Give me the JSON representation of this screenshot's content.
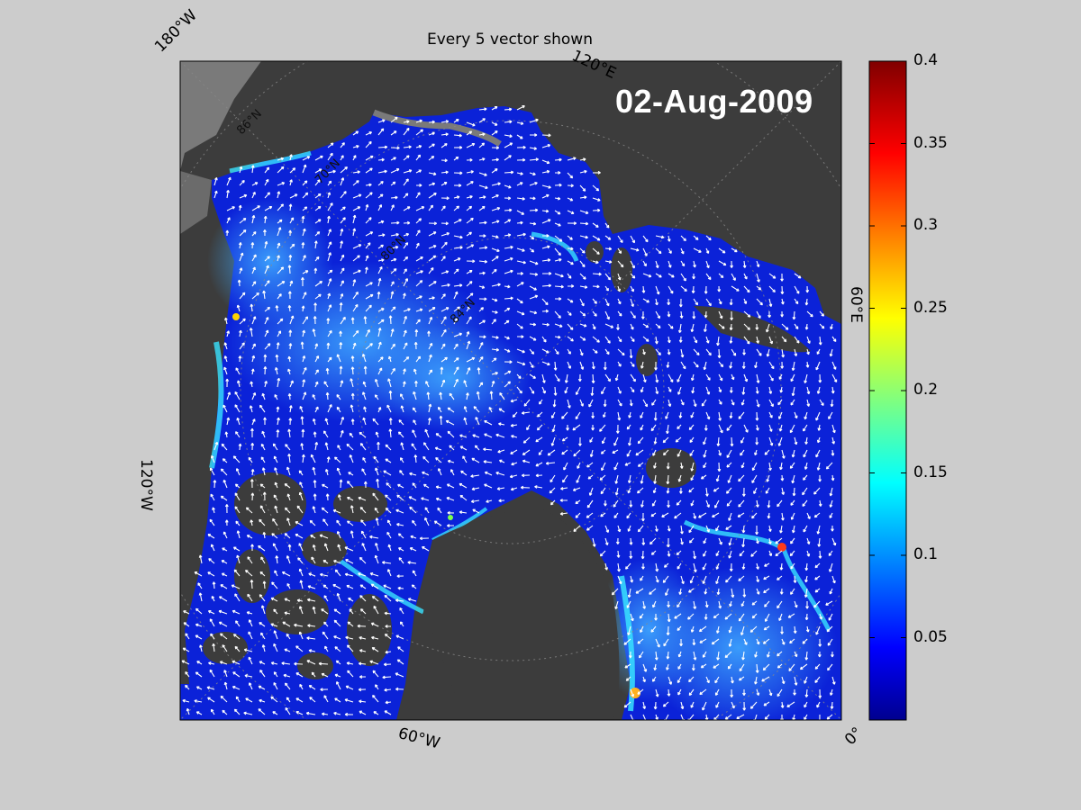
{
  "figure": {
    "title": "Every 5 vector shown",
    "date": "02-Aug-2009"
  },
  "map": {
    "coordinate_labels": {
      "lon_180w": "180°W",
      "lon_120e": "120°E",
      "lon_60e": "60°E",
      "lon_120w": "120°W",
      "lon_60w": "60°W",
      "lon_0": "0°",
      "lat_86n": "86°N",
      "lat_70n": "70°N",
      "lat_80n": "80°N",
      "lat_84n": "84°N"
    },
    "colors": {
      "land": "#3c3c3c",
      "outer_land": "#7a7a7a",
      "ice_low": "#0a1dd6",
      "ice_mid": "#1f6dff",
      "vector": "#ffffff"
    }
  },
  "colorbar": {
    "range": [
      0,
      0.4
    ],
    "ticks": [
      "0.4",
      "0.35",
      "0.3",
      "0.25",
      "0.2",
      "0.15",
      "0.1",
      "0.05"
    ],
    "colormap": "jet"
  }
}
